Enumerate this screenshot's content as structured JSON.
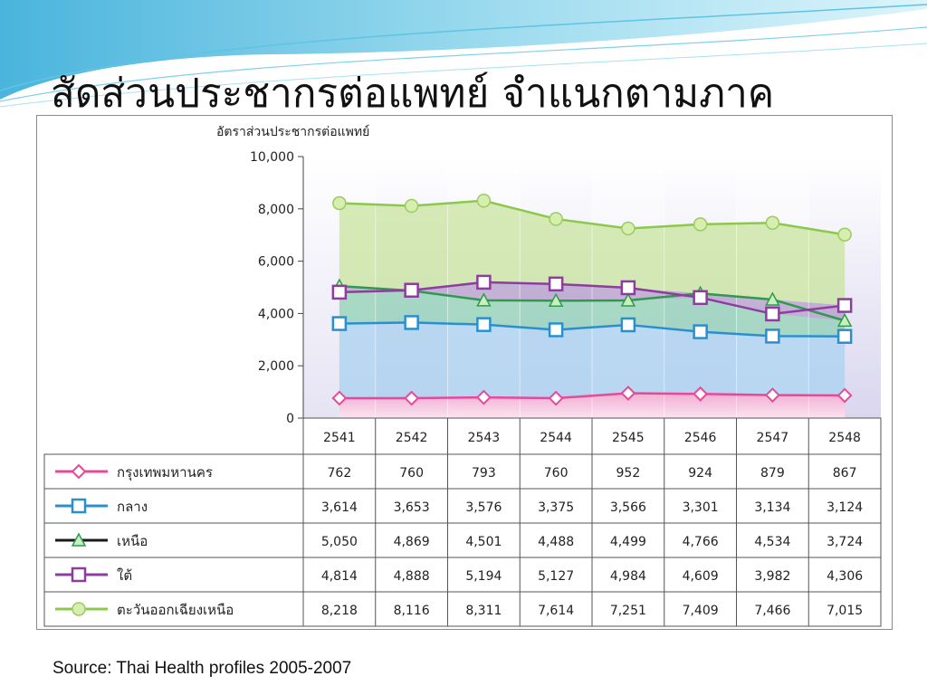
{
  "slide": {
    "title": "สัดส่วนประชากรต่อแพทย์ จำแนกตามภาค",
    "source": "Source: Thai Health profiles 2005-2007"
  },
  "chart_data": {
    "type": "line",
    "ylabel": "อัตราส่วนประชากรต่อแพทย์",
    "xlabel": "",
    "ylim": [
      0,
      10000
    ],
    "yticks": [
      "0",
      "2,000",
      "4,000",
      "6,000",
      "8,000",
      "10,000"
    ],
    "categories": [
      "2541",
      "2542",
      "2543",
      "2544",
      "2545",
      "2546",
      "2547",
      "2548"
    ],
    "legend_placement": "table-left",
    "series": [
      {
        "name": "กรุงเทพมหานคร",
        "color": "#e8489a",
        "marker": "diamond",
        "values": [
          762,
          760,
          793,
          760,
          952,
          924,
          879,
          867
        ],
        "labels": [
          "762",
          "760",
          "793",
          "760",
          "952",
          "924",
          "879",
          "867"
        ]
      },
      {
        "name": "กลาง",
        "color": "#2a8fd0",
        "marker": "square",
        "values": [
          3614,
          3653,
          3576,
          3375,
          3566,
          3301,
          3134,
          3124
        ],
        "labels": [
          "3,614",
          "3,653",
          "3,576",
          "3,375",
          "3,566",
          "3,301",
          "3,134",
          "3,124"
        ]
      },
      {
        "name": "เหนือ",
        "color": "#2e9a4e",
        "legend_color": "#1a1a1a",
        "marker": "triangle",
        "values": [
          5050,
          4869,
          4501,
          4488,
          4499,
          4766,
          4534,
          3724
        ],
        "labels": [
          "5,050",
          "4,869",
          "4,501",
          "4,488",
          "4,499",
          "4,766",
          "4,534",
          "3,724"
        ]
      },
      {
        "name": "ใต้",
        "color": "#8c3d9e",
        "marker": "square",
        "values": [
          4814,
          4888,
          5194,
          5127,
          4984,
          4609,
          3982,
          4306
        ],
        "labels": [
          "4,814",
          "4,888",
          "5,194",
          "5,127",
          "4,984",
          "4,609",
          "3,982",
          "4,306"
        ]
      },
      {
        "name": "ตะวันออกเฉียงเหนือ",
        "color": "#8cc84b",
        "marker": "circle",
        "values": [
          8218,
          8116,
          8311,
          7614,
          7251,
          7409,
          7466,
          7015
        ],
        "labels": [
          "8,218",
          "8,116",
          "8,311",
          "7,614",
          "7,251",
          "7,409",
          "7,466",
          "7,015"
        ]
      }
    ]
  }
}
